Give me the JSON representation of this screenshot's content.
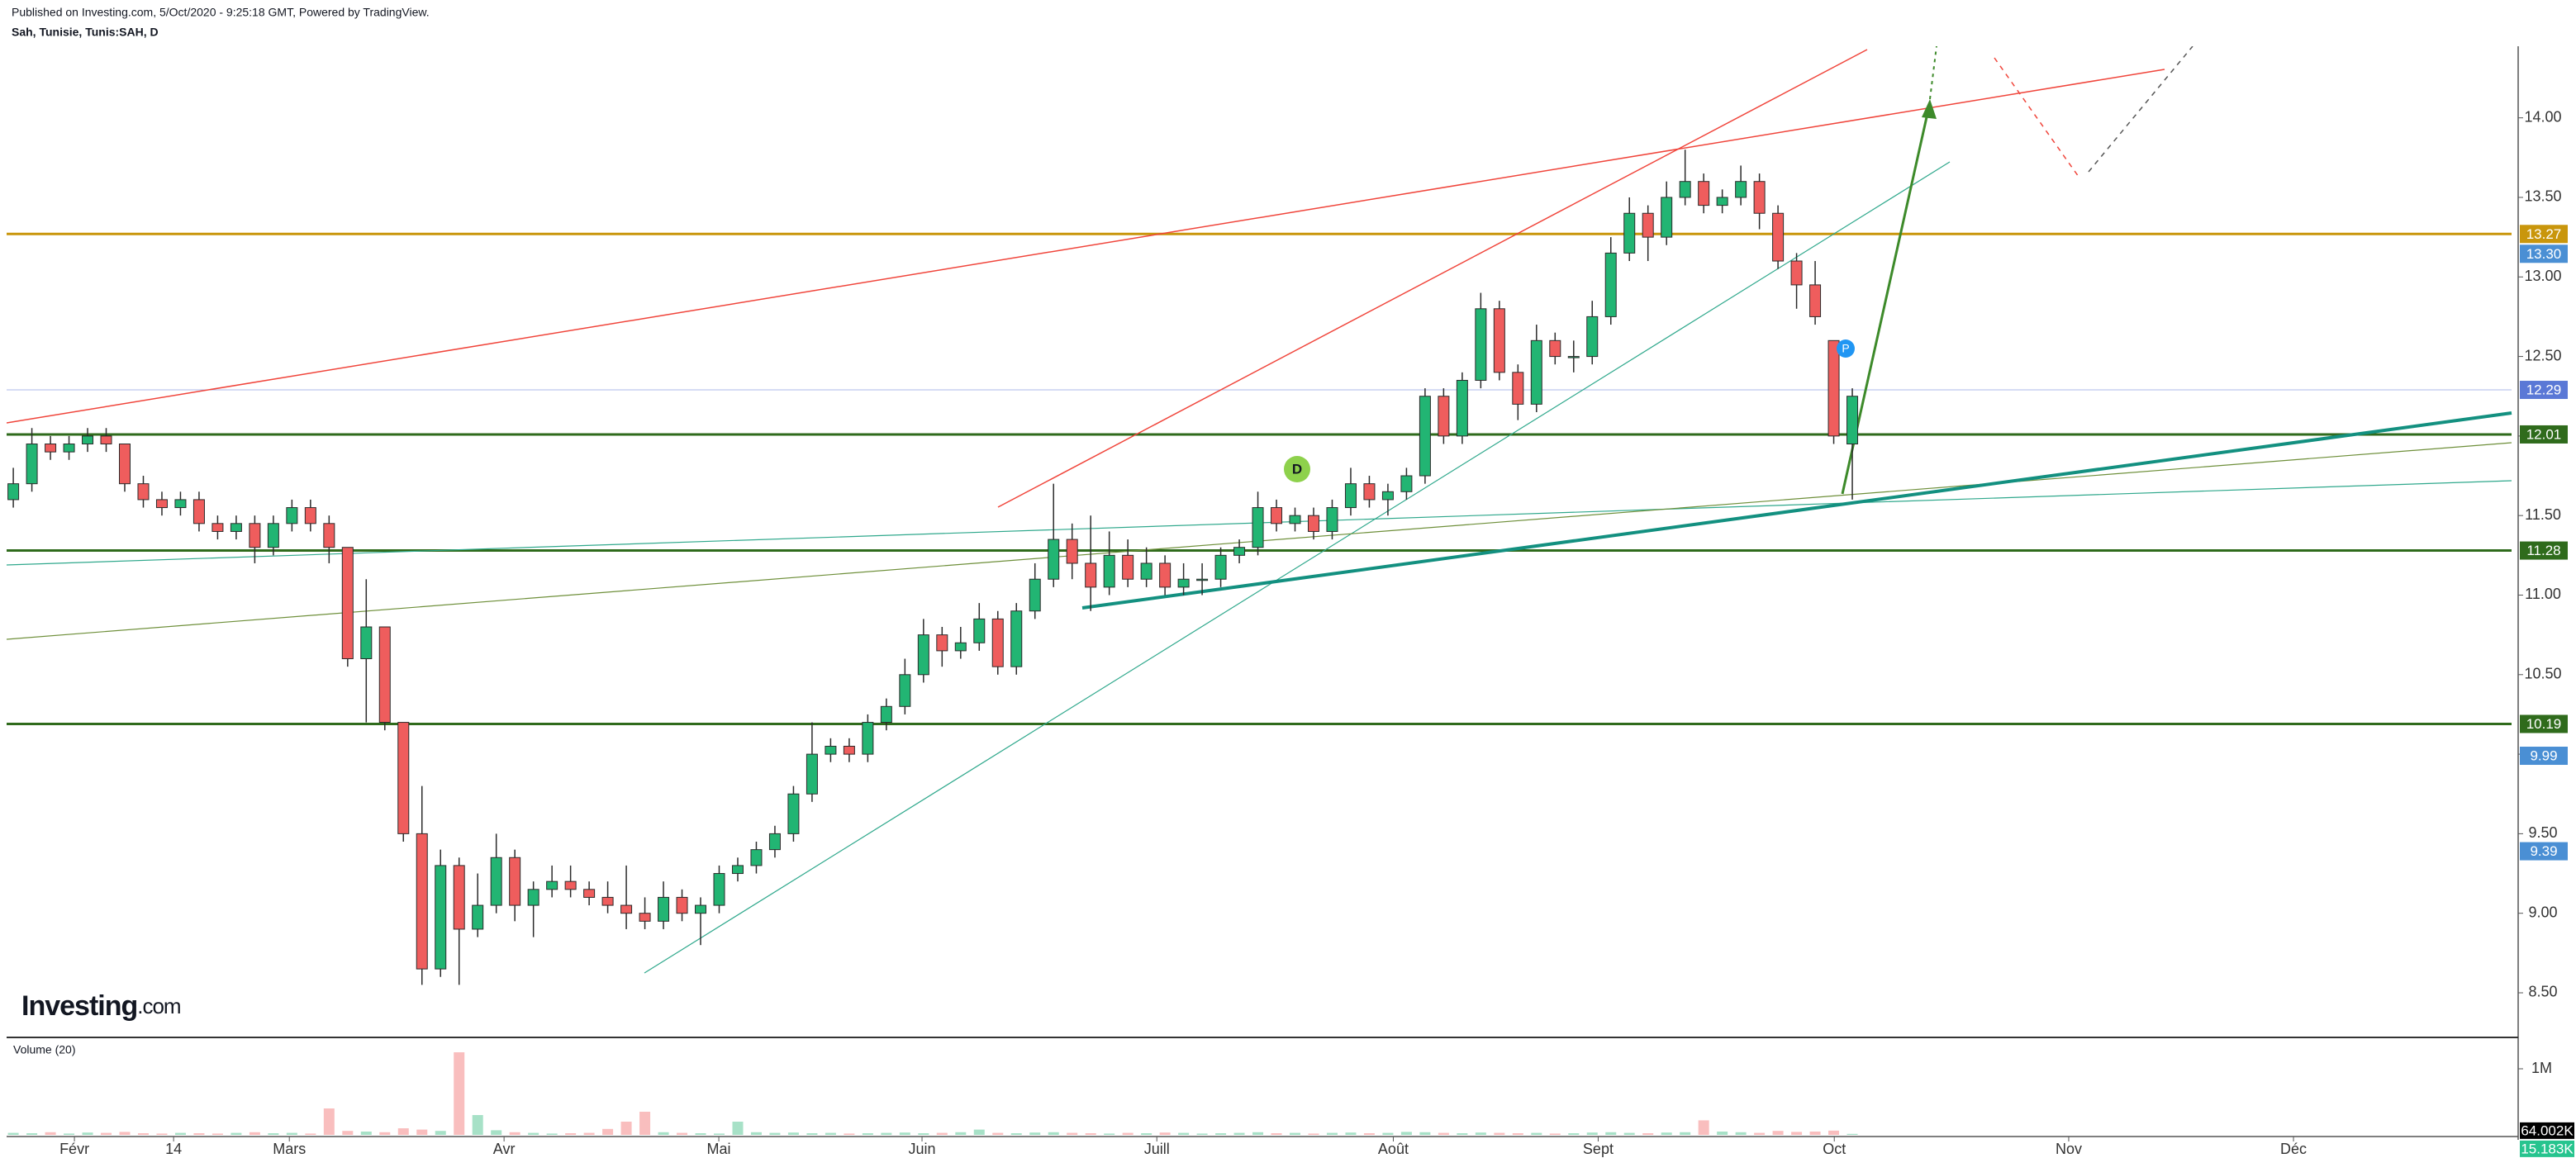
{
  "header": {
    "published": "Published on Investing.com, 5/Oct/2020 - 9:25:18 GMT, Powered by TradingView.",
    "symbol": "Sah, Tunisie, Tunis:SAH, D"
  },
  "logo": {
    "brand": "Investing",
    "suffix": ".com"
  },
  "chart_data": {
    "type": "candlestick",
    "up_color": "#22b573",
    "down_color": "#ef5d5d",
    "outline_color": "#2b2b2b",
    "grid": false,
    "xlim": [
      -0.36,
      134.49
    ],
    "xticks": [
      {
        "value": 3.29,
        "label": "Févr"
      },
      {
        "value": 8.63,
        "label": "14"
      },
      {
        "value": 14.86,
        "label": "Mars"
      },
      {
        "value": 26.42,
        "label": "Avr"
      },
      {
        "value": 37.98,
        "label": "Mai"
      },
      {
        "value": 48.92,
        "label": "Juin"
      },
      {
        "value": 61.56,
        "label": "Juill"
      },
      {
        "value": 74.29,
        "label": "Août"
      },
      {
        "value": 85.32,
        "label": "Sept"
      },
      {
        "value": 98.03,
        "label": "Oct"
      },
      {
        "value": 110.65,
        "label": "Nov"
      },
      {
        "value": 122.75,
        "label": "Déc"
      }
    ],
    "ylim": [
      8.23,
      14.45
    ],
    "yticks": [
      {
        "value": 8.5,
        "label": "8.50"
      },
      {
        "value": 9,
        "label": "9.00"
      },
      {
        "value": 9.5,
        "label": "9.50"
      },
      {
        "value": 10,
        "label": "10.00"
      },
      {
        "value": 10.5,
        "label": "10.50"
      },
      {
        "value": 11,
        "label": "11.00"
      },
      {
        "value": 11.5,
        "label": "11.50"
      },
      {
        "value": 12,
        "label": "12.00"
      },
      {
        "value": 12.5,
        "label": "12.50"
      },
      {
        "value": 13,
        "label": "13.00"
      },
      {
        "value": 13.5,
        "label": "13.50"
      },
      {
        "value": 14,
        "label": "14.00"
      }
    ],
    "levels": [
      {
        "value": 13.27,
        "label": "13.27",
        "color": "#c9960c",
        "line": true
      },
      {
        "value": 13.3,
        "label": "13.30",
        "color": "#4a8fd4",
        "line": false
      },
      {
        "value": 12.29,
        "label": "12.29",
        "color": "#5a78d6",
        "line": true
      },
      {
        "value": 12.01,
        "label": "12.01",
        "color": "#2f6b1c",
        "line": true
      },
      {
        "value": 11.28,
        "label": "11.28",
        "color": "#2f6b1c",
        "line": true
      },
      {
        "value": 10.19,
        "label": "10.19",
        "color": "#2f6b1c",
        "line": true
      },
      {
        "value": 9.99,
        "label": "9.99",
        "color": "#4a8fd4",
        "line": false
      },
      {
        "value": 9.39,
        "label": "9.39",
        "color": "#4a8fd4",
        "line": false
      }
    ],
    "annotations": [
      "D",
      "P"
    ],
    "ohlc": [
      [
        11.6,
        11.8,
        11.55,
        11.7
      ],
      [
        11.7,
        12.05,
        11.65,
        11.95
      ],
      [
        11.95,
        12.0,
        11.85,
        11.9
      ],
      [
        11.9,
        12.0,
        11.85,
        11.95
      ],
      [
        11.95,
        12.05,
        11.9,
        12.0
      ],
      [
        12.0,
        12.05,
        11.9,
        11.95
      ],
      [
        11.95,
        11.95,
        11.65,
        11.7
      ],
      [
        11.7,
        11.75,
        11.55,
        11.6
      ],
      [
        11.6,
        11.65,
        11.5,
        11.55
      ],
      [
        11.55,
        11.65,
        11.5,
        11.6
      ],
      [
        11.6,
        11.65,
        11.4,
        11.45
      ],
      [
        11.45,
        11.5,
        11.35,
        11.4
      ],
      [
        11.4,
        11.5,
        11.35,
        11.45
      ],
      [
        11.45,
        11.5,
        11.2,
        11.3
      ],
      [
        11.3,
        11.5,
        11.25,
        11.45
      ],
      [
        11.45,
        11.6,
        11.4,
        11.55
      ],
      [
        11.55,
        11.6,
        11.4,
        11.45
      ],
      [
        11.45,
        11.5,
        11.2,
        11.3
      ],
      [
        11.3,
        11.3,
        10.55,
        10.6
      ],
      [
        10.6,
        11.1,
        10.2,
        10.8
      ],
      [
        10.8,
        10.8,
        10.15,
        10.2
      ],
      [
        10.2,
        10.2,
        9.45,
        9.5
      ],
      [
        9.5,
        9.8,
        8.55,
        8.65
      ],
      [
        8.65,
        9.4,
        8.6,
        9.3
      ],
      [
        9.3,
        9.35,
        8.55,
        8.9
      ],
      [
        8.9,
        9.25,
        8.85,
        9.05
      ],
      [
        9.05,
        9.5,
        9.0,
        9.35
      ],
      [
        9.35,
        9.4,
        8.95,
        9.05
      ],
      [
        9.05,
        9.2,
        8.85,
        9.15
      ],
      [
        9.15,
        9.3,
        9.1,
        9.2
      ],
      [
        9.2,
        9.3,
        9.1,
        9.15
      ],
      [
        9.15,
        9.2,
        9.05,
        9.1
      ],
      [
        9.1,
        9.2,
        9.0,
        9.05
      ],
      [
        9.05,
        9.3,
        8.9,
        9.0
      ],
      [
        9.0,
        9.1,
        8.9,
        8.95
      ],
      [
        8.95,
        9.2,
        8.9,
        9.1
      ],
      [
        9.1,
        9.15,
        8.95,
        9.0
      ],
      [
        9.0,
        9.1,
        8.8,
        9.05
      ],
      [
        9.05,
        9.3,
        9.0,
        9.25
      ],
      [
        9.25,
        9.35,
        9.2,
        9.3
      ],
      [
        9.3,
        9.45,
        9.25,
        9.4
      ],
      [
        9.4,
        9.55,
        9.35,
        9.5
      ],
      [
        9.5,
        9.8,
        9.45,
        9.75
      ],
      [
        9.75,
        10.2,
        9.7,
        10.0
      ],
      [
        10.0,
        10.1,
        9.95,
        10.05
      ],
      [
        10.05,
        10.1,
        9.95,
        10.0
      ],
      [
        10.0,
        10.25,
        9.95,
        10.2
      ],
      [
        10.2,
        10.35,
        10.15,
        10.3
      ],
      [
        10.3,
        10.6,
        10.25,
        10.5
      ],
      [
        10.5,
        10.85,
        10.45,
        10.75
      ],
      [
        10.75,
        10.8,
        10.55,
        10.65
      ],
      [
        10.65,
        10.8,
        10.6,
        10.7
      ],
      [
        10.7,
        10.95,
        10.65,
        10.85
      ],
      [
        10.85,
        10.9,
        10.5,
        10.55
      ],
      [
        10.55,
        10.95,
        10.5,
        10.9
      ],
      [
        10.9,
        11.2,
        10.85,
        11.1
      ],
      [
        11.1,
        11.7,
        11.05,
        11.35
      ],
      [
        11.35,
        11.45,
        11.1,
        11.2
      ],
      [
        11.2,
        11.5,
        10.9,
        11.05
      ],
      [
        11.05,
        11.4,
        11.0,
        11.25
      ],
      [
        11.25,
        11.35,
        11.05,
        11.1
      ],
      [
        11.1,
        11.3,
        11.05,
        11.2
      ],
      [
        11.2,
        11.25,
        11.0,
        11.05
      ],
      [
        11.05,
        11.2,
        11.0,
        11.1
      ],
      [
        11.1,
        11.2,
        11.0,
        11.1
      ],
      [
        11.1,
        11.3,
        11.05,
        11.25
      ],
      [
        11.25,
        11.35,
        11.2,
        11.3
      ],
      [
        11.3,
        11.65,
        11.25,
        11.55
      ],
      [
        11.55,
        11.6,
        11.4,
        11.45
      ],
      [
        11.45,
        11.55,
        11.4,
        11.5
      ],
      [
        11.5,
        11.55,
        11.35,
        11.4
      ],
      [
        11.4,
        11.6,
        11.35,
        11.55
      ],
      [
        11.55,
        11.8,
        11.5,
        11.7
      ],
      [
        11.7,
        11.75,
        11.55,
        11.6
      ],
      [
        11.6,
        11.7,
        11.5,
        11.65
      ],
      [
        11.65,
        11.8,
        11.6,
        11.75
      ],
      [
        11.75,
        12.3,
        11.7,
        12.25
      ],
      [
        12.25,
        12.3,
        11.95,
        12.0
      ],
      [
        12.0,
        12.4,
        11.95,
        12.35
      ],
      [
        12.35,
        12.9,
        12.3,
        12.8
      ],
      [
        12.8,
        12.85,
        12.35,
        12.4
      ],
      [
        12.4,
        12.45,
        12.1,
        12.2
      ],
      [
        12.2,
        12.7,
        12.15,
        12.6
      ],
      [
        12.6,
        12.65,
        12.45,
        12.5
      ],
      [
        12.5,
        12.6,
        12.4,
        12.5
      ],
      [
        12.5,
        12.85,
        12.45,
        12.75
      ],
      [
        12.75,
        13.25,
        12.7,
        13.15
      ],
      [
        13.15,
        13.5,
        13.1,
        13.4
      ],
      [
        13.4,
        13.45,
        13.1,
        13.25
      ],
      [
        13.25,
        13.6,
        13.2,
        13.5
      ],
      [
        13.5,
        13.8,
        13.45,
        13.6
      ],
      [
        13.6,
        13.65,
        13.4,
        13.45
      ],
      [
        13.45,
        13.55,
        13.4,
        13.5
      ],
      [
        13.5,
        13.7,
        13.45,
        13.6
      ],
      [
        13.6,
        13.65,
        13.3,
        13.4
      ],
      [
        13.4,
        13.45,
        13.05,
        13.1
      ],
      [
        13.1,
        13.15,
        12.8,
        12.95
      ],
      [
        12.95,
        13.1,
        12.7,
        12.75
      ],
      [
        12.6,
        12.6,
        11.95,
        12.0
      ],
      [
        11.95,
        12.3,
        11.6,
        12.25
      ]
    ],
    "volume": {
      "title": "Volume (20)",
      "ylim": [
        0,
        1400000
      ],
      "yticks": [
        {
          "value": 1000000,
          "label": "1M"
        }
      ],
      "tags": [
        {
          "value": 64002,
          "label": "64.002K",
          "color": "#000000"
        },
        {
          "value": 15183,
          "label": "15.183K",
          "color": "#26c48e"
        }
      ],
      "values": [
        30000,
        25000,
        40000,
        20000,
        35000,
        30000,
        45000,
        25000,
        20000,
        30000,
        25000,
        20000,
        30000,
        40000,
        25000,
        30000,
        20000,
        400000,
        60000,
        50000,
        40000,
        100000,
        80000,
        60000,
        1250000,
        300000,
        70000,
        40000,
        30000,
        20000,
        25000,
        30000,
        90000,
        200000,
        350000,
        40000,
        30000,
        25000,
        20000,
        200000,
        40000,
        30000,
        35000,
        25000,
        30000,
        20000,
        25000,
        30000,
        35000,
        25000,
        30000,
        40000,
        80000,
        30000,
        25000,
        35000,
        40000,
        30000,
        25000,
        20000,
        30000,
        25000,
        35000,
        30000,
        20000,
        25000,
        30000,
        40000,
        25000,
        30000,
        20000,
        30000,
        35000,
        25000,
        30000,
        45000,
        40000,
        30000,
        25000,
        35000,
        30000,
        25000,
        30000,
        20000,
        25000,
        35000,
        40000,
        30000,
        25000,
        35000,
        40000,
        220000,
        50000,
        40000,
        30000,
        60000,
        45000,
        50000,
        64002,
        15183
      ]
    }
  }
}
